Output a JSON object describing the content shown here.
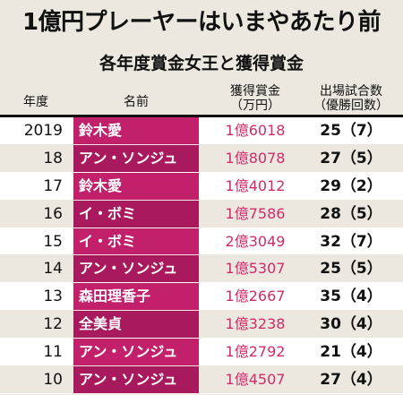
{
  "title": "1億円プレーヤーはいまやあたり前",
  "subtitle": "各年度賞金女王と獲得賞金",
  "headers": {
    "year": "年度",
    "name": "名前",
    "prize_line1": "獲得賞金",
    "prize_line2": "（万円）",
    "starts_line1": "出場試合数",
    "starts_line2": "（優勝回数）"
  },
  "rows": [
    {
      "year": "2019",
      "name": "鈴木愛",
      "prize": "1億6018",
      "starts": "25（7）"
    },
    {
      "year": "18",
      "name": "アン・ソンジュ",
      "prize": "1億8078",
      "starts": "27（5）"
    },
    {
      "year": "17",
      "name": "鈴木愛",
      "prize": "1億4012",
      "starts": "29（2）"
    },
    {
      "year": "16",
      "name": "イ・ボミ",
      "prize": "1億7586",
      "starts": "28（5）"
    },
    {
      "year": "15",
      "name": "イ・ボミ",
      "prize": "2億3049",
      "starts": "32（7）"
    },
    {
      "year": "14",
      "name": "アン・ソンジュ",
      "prize": "1億5307",
      "starts": "25（5）"
    },
    {
      "year": "13",
      "name": "森田理香子",
      "prize": "1億2667",
      "starts": "35（4）"
    },
    {
      "year": "12",
      "name": "全美貞",
      "prize": "1億3238",
      "starts": "30（4）"
    },
    {
      "year": "11",
      "name": "アン・ソンジュ",
      "prize": "1億2792",
      "starts": "21（4）"
    },
    {
      "year": "10",
      "name": "アン・ソンジュ",
      "prize": "1億4507",
      "starts": "27（4）"
    }
  ],
  "colors": {
    "background": "#ece8df",
    "name_cell": "#c3206c",
    "name_cell_alt": "#a81a5d",
    "prize_text": "#d02a6b"
  }
}
